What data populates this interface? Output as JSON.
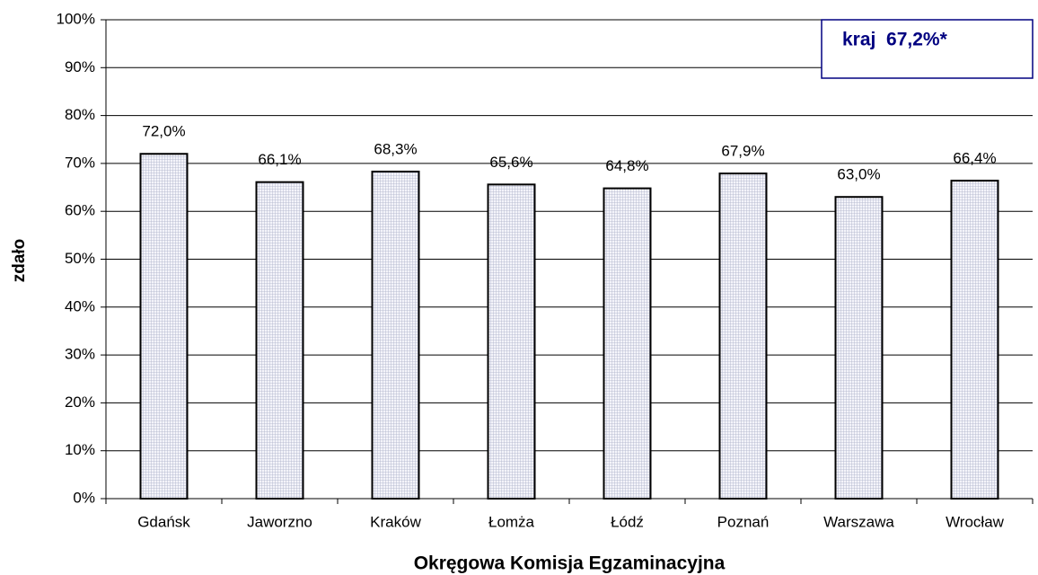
{
  "chart_data": {
    "type": "bar",
    "categories": [
      "Gdańsk",
      "Jaworzno",
      "Kraków",
      "Łomża",
      "Łódź",
      "Poznań",
      "Warszawa",
      "Wrocław"
    ],
    "values": [
      72.0,
      66.1,
      68.3,
      65.6,
      64.8,
      67.9,
      63.0,
      66.4
    ],
    "value_labels": [
      "72,0%",
      "66,1%",
      "68,3%",
      "65,6%",
      "64,8%",
      "67,9%",
      "63,0%",
      "66,4%"
    ],
    "x_label": "Okręgowa Komisja Egzaminacyjna",
    "y_label": "zdało",
    "annotation": "kraj  67,2%*",
    "ylim": [
      0,
      100
    ],
    "yticks": [
      {
        "value": 0,
        "label": "0%"
      },
      {
        "value": 10,
        "label": "10%"
      },
      {
        "value": 20,
        "label": "20%"
      },
      {
        "value": 30,
        "label": "30%"
      },
      {
        "value": 40,
        "label": "40%"
      },
      {
        "value": 50,
        "label": "50%"
      },
      {
        "value": 60,
        "label": "60%"
      },
      {
        "value": 70,
        "label": "70%"
      },
      {
        "value": 80,
        "label": "80%"
      },
      {
        "value": 90,
        "label": "90%"
      },
      {
        "value": 100,
        "label": "100%"
      }
    ],
    "grid": true
  }
}
